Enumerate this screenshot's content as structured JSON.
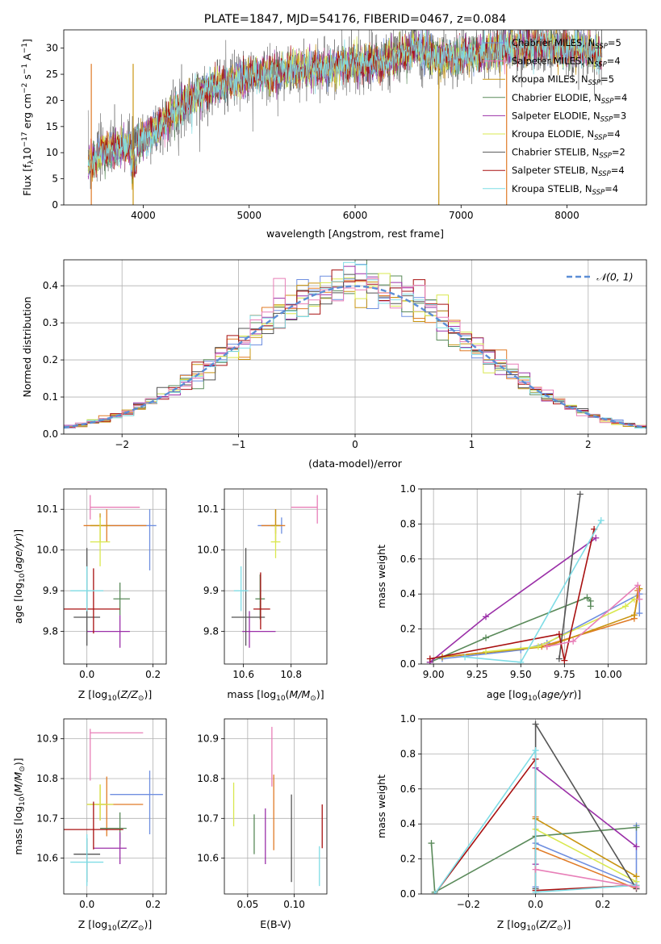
{
  "colors": [
    "#6f8fe0",
    "#e07b27",
    "#c99512",
    "#5a8a5a",
    "#9b30a8",
    "#d9e84f",
    "#555555",
    "#a81010",
    "#7fdde6",
    "#e87fb8"
  ],
  "chart_data": [
    {
      "id": "spectrum",
      "type": "line",
      "title": "PLATE=1847, MJD=54176, FIBERID=0467, z=0.084",
      "xlabel": "wavelength [Angstrom, rest frame]",
      "ylabel": "Flux [f_λ10^-17 erg cm^-2 s^-1 A^-1]",
      "xlim": [
        3250,
        8750
      ],
      "ylim": [
        0,
        33.5
      ],
      "xticks": [
        4000,
        5000,
        6000,
        7000,
        8000
      ],
      "yticks": [
        0,
        5,
        10,
        15,
        20,
        25,
        30
      ],
      "grid": false,
      "legend_position": "top-right",
      "spectrum_anchor_points": {
        "x": [
          3480,
          3600,
          3800,
          3950,
          4100,
          4300,
          4500,
          4800,
          5000,
          5200,
          5500,
          5800,
          6000,
          6300,
          6563,
          6800,
          7000,
          7200,
          7500,
          7800,
          8000,
          8300
        ],
        "y": [
          8,
          10,
          11,
          12,
          14,
          18,
          21,
          23.5,
          24.5,
          25,
          26,
          26.5,
          27,
          27.5,
          30,
          28,
          28.5,
          29,
          30,
          30.5,
          30,
          29
        ]
      },
      "legend": [
        {
          "name": "Chabrier MILES, N$_{SSP}$=5",
          "base": "Chabrier MILES, N",
          "sub": "SSP",
          "tail": "=5",
          "color": "#6f8fe0"
        },
        {
          "name": "Salpeter MILES, N$_{SSP}$=4",
          "base": "Salpeter MILES, N",
          "sub": "SSP",
          "tail": "=4",
          "color": "#e87fb8"
        },
        {
          "name": "Kroupa MILES, N$_{SSP}$=5",
          "base": "Kroupa MILES, N",
          "sub": "SSP",
          "tail": "=5",
          "color": "#c99512"
        },
        {
          "name": "Chabrier ELODIE, N$_{SSP}$=4",
          "base": "Chabrier ELODIE, N",
          "sub": "SSP",
          "tail": "=4",
          "color": "#5a8a5a"
        },
        {
          "name": "Salpeter ELODIE, N$_{SSP}$=3",
          "base": "Salpeter ELODIE, N",
          "sub": "SSP",
          "tail": "=3",
          "color": "#9b30a8"
        },
        {
          "name": "Kroupa ELODIE, N$_{SSP}$=4",
          "base": "Kroupa ELODIE, N",
          "sub": "SSP",
          "tail": "=4",
          "color": "#d9e84f"
        },
        {
          "name": "Chabrier STELIB, N$_{SSP}$=2",
          "base": "Chabrier STELIB, N",
          "sub": "SSP",
          "tail": "=2",
          "color": "#555555"
        },
        {
          "name": "Salpeter STELIB, N$_{SSP}$=4",
          "base": "Salpeter STELIB, N",
          "sub": "SSP",
          "tail": "=4",
          "color": "#a81010"
        },
        {
          "name": "Kroupa STELIB, N$_{SSP}$=4",
          "base": "Kroupa STELIB, N",
          "sub": "SSP",
          "tail": "=4",
          "color": "#7fdde6"
        }
      ]
    },
    {
      "id": "residuals",
      "type": "line",
      "xlabel": "(data-model)/error",
      "ylabel": "Normed distribution",
      "xlim": [
        -2.5,
        2.5
      ],
      "ylim": [
        0,
        0.47
      ],
      "xticks": [
        -2,
        -1,
        0,
        1,
        2
      ],
      "yticks": [
        0.0,
        0.1,
        0.2,
        0.3,
        0.4
      ],
      "grid": true,
      "legend_position": "top-right",
      "legend": [
        {
          "name": "N(0,1)",
          "label": "𝒩(0, 1)",
          "color": "#5b8ed6",
          "style": "dashed"
        }
      ],
      "histogram": {
        "bin_start": -2.5,
        "bin_width": 0.1,
        "n_bins": 50,
        "model": "normal(0,1) with scatter per series",
        "n_series": 10
      }
    },
    {
      "id": "age-vs-z",
      "type": "scatter",
      "xlabel": "Z [log10(Z/Z⊙)]",
      "ylabel": "age [log10(age/yr)]",
      "xlim": [
        -0.07,
        0.24
      ],
      "ylim": [
        9.72,
        10.15
      ],
      "xticks": [
        0.0,
        0.2
      ],
      "yticks": [
        9.8,
        9.9,
        10.0,
        10.1
      ],
      "grid": true,
      "points": [
        {
          "x": 0.19,
          "y": 10.06,
          "xerr": [
            0.12,
            0.02
          ],
          "yerr": [
            0.11,
            0.04
          ],
          "color": "#6f8fe0"
        },
        {
          "x": 0.06,
          "y": 10.06,
          "xerr": [
            0.07,
            0.12
          ],
          "yerr": [
            0.04,
            0.04
          ],
          "color": "#e07b27"
        },
        {
          "x": 0.04,
          "y": 10.06,
          "xerr": [
            0.03,
            0.03
          ],
          "yerr": [
            0.04,
            0.03
          ],
          "color": "#c99512"
        },
        {
          "x": 0.1,
          "y": 9.88,
          "xerr": [
            0.02,
            0.03
          ],
          "yerr": [
            0.04,
            0.04
          ],
          "color": "#5a8a5a"
        },
        {
          "x": 0.1,
          "y": 9.8,
          "xerr": [
            0.1,
            0.03
          ],
          "yerr": [
            0.04,
            0.04
          ],
          "color": "#9b30a8"
        },
        {
          "x": 0.04,
          "y": 10.02,
          "xerr": [
            0.03,
            0.03
          ],
          "yerr": [
            0.06,
            0.06
          ],
          "color": "#d9e84f"
        },
        {
          "x": 0.0,
          "y": 9.835,
          "xerr": [
            0.04,
            0.04
          ],
          "yerr": [
            0.07,
            0.17
          ],
          "color": "#555555"
        },
        {
          "x": 0.02,
          "y": 9.855,
          "xerr": [
            0.1,
            0.08
          ],
          "yerr": [
            0.06,
            0.1
          ],
          "color": "#a81010"
        },
        {
          "x": 0.0,
          "y": 9.9,
          "xerr": [
            0.05,
            0.05
          ],
          "yerr": [
            0.05,
            0.06
          ],
          "color": "#7fdde6"
        },
        {
          "x": 0.01,
          "y": 10.105,
          "xerr": [
            0.0,
            0.15
          ],
          "yerr": [
            0.03,
            0.03
          ],
          "color": "#e87fb8"
        }
      ]
    },
    {
      "id": "age-vs-mass",
      "type": "scatter",
      "xlabel": "mass [log10(M/M⊙)]",
      "ylabel": "",
      "xlim": [
        10.52,
        10.95
      ],
      "ylim": [
        9.72,
        10.15
      ],
      "xticks": [
        10.6,
        10.8
      ],
      "yticks": [
        9.8,
        9.9,
        10.0,
        10.1
      ],
      "grid": true,
      "points": [
        {
          "x": 10.76,
          "y": 10.06,
          "xerr": [
            0.1,
            0.0
          ],
          "yerr": [
            0.02,
            0.02
          ],
          "color": "#6f8fe0"
        },
        {
          "x": 10.735,
          "y": 10.06,
          "xerr": [
            0.06,
            0.04
          ],
          "yerr": [
            0.02,
            0.04
          ],
          "color": "#e07b27"
        },
        {
          "x": 10.735,
          "y": 10.06,
          "xerr": [
            0.02,
            0.02
          ],
          "yerr": [
            0.04,
            0.04
          ],
          "color": "#c99512"
        },
        {
          "x": 10.67,
          "y": 9.88,
          "xerr": [
            0.02,
            0.02
          ],
          "yerr": [
            0.05,
            0.06
          ],
          "color": "#5a8a5a"
        },
        {
          "x": 10.625,
          "y": 9.8,
          "xerr": [
            0.03,
            0.11
          ],
          "yerr": [
            0.04,
            0.05
          ],
          "color": "#9b30a8"
        },
        {
          "x": 10.735,
          "y": 10.02,
          "xerr": [
            0.02,
            0.02
          ],
          "yerr": [
            0.04,
            0.04
          ],
          "color": "#d9e84f"
        },
        {
          "x": 10.61,
          "y": 9.835,
          "xerr": [
            0.06,
            0.08
          ],
          "yerr": [
            0.07,
            0.17
          ],
          "color": "#555555"
        },
        {
          "x": 10.672,
          "y": 9.855,
          "xerr": [
            0.03,
            0.04
          ],
          "yerr": [
            0.05,
            0.09
          ],
          "color": "#a81010"
        },
        {
          "x": 10.59,
          "y": 9.9,
          "xerr": [
            0.03,
            0.03
          ],
          "yerr": [
            0.05,
            0.06
          ],
          "color": "#7fdde6"
        },
        {
          "x": 10.91,
          "y": 10.105,
          "xerr": [
            0.11,
            0.0
          ],
          "yerr": [
            0.04,
            0.03
          ],
          "color": "#e87fb8"
        }
      ]
    },
    {
      "id": "weight-vs-age",
      "type": "line",
      "xlabel": "age [log10(age/yr)]",
      "ylabel": "mass weight",
      "xlim": [
        8.93,
        10.22
      ],
      "ylim": [
        0,
        1.0
      ],
      "xticks": [
        9.0,
        9.25,
        9.5,
        9.75,
        10.0
      ],
      "yticks": [
        0.0,
        0.2,
        0.4,
        0.6,
        0.8,
        1.0
      ],
      "grid": true,
      "series": [
        {
          "color": "#6f8fe0",
          "x": [
            9.05,
            9.5,
            9.65,
            10.18,
            10.18
          ],
          "y": [
            0.03,
            0.08,
            0.12,
            0.4,
            0.29
          ]
        },
        {
          "color": "#e07b27",
          "x": [
            9.05,
            9.62,
            10.15,
            10.17
          ],
          "y": [
            0.04,
            0.1,
            0.26,
            0.42
          ]
        },
        {
          "color": "#c99512",
          "x": [
            9.05,
            9.65,
            10.15,
            10.18
          ],
          "y": [
            0.04,
            0.1,
            0.28,
            0.43
          ]
        },
        {
          "color": "#5a8a5a",
          "x": [
            8.98,
            9.3,
            9.88,
            9.9,
            9.9
          ],
          "y": [
            0.01,
            0.15,
            0.38,
            0.36,
            0.33
          ]
        },
        {
          "color": "#9b30a8",
          "x": [
            8.98,
            9.3,
            9.93
          ],
          "y": [
            0.01,
            0.27,
            0.72
          ]
        },
        {
          "color": "#d9e84f",
          "x": [
            9.3,
            9.6,
            10.1,
            10.15
          ],
          "y": [
            0.07,
            0.1,
            0.33,
            0.37
          ]
        },
        {
          "color": "#555555",
          "x": [
            9.72,
            9.84
          ],
          "y": [
            0.03,
            0.97
          ]
        },
        {
          "color": "#a81010",
          "x": [
            8.98,
            9.72,
            9.75,
            9.92
          ],
          "y": [
            0.03,
            0.17,
            0.02,
            0.77
          ]
        },
        {
          "color": "#7fdde6",
          "x": [
            9.18,
            9.5,
            9.96
          ],
          "y": [
            0.04,
            0.01,
            0.82
          ]
        },
        {
          "color": "#e87fb8",
          "x": [
            9.65,
            9.8,
            10.17,
            10.18
          ],
          "y": [
            0.1,
            0.13,
            0.45,
            0.37
          ]
        }
      ]
    },
    {
      "id": "mass-vs-z",
      "type": "scatter",
      "xlabel": "Z [log10(Z/Z⊙)]",
      "ylabel": "mass [log10(M/M⊙)]",
      "xlim": [
        -0.07,
        0.24
      ],
      "ylim": [
        10.51,
        10.95
      ],
      "xticks": [
        0.0,
        0.2
      ],
      "yticks": [
        10.6,
        10.7,
        10.8,
        10.9
      ],
      "grid": true,
      "points": [
        {
          "x": 0.19,
          "y": 10.76,
          "xerr": [
            0.12,
            0.04
          ],
          "yerr": [
            0.1,
            0.06
          ],
          "color": "#6f8fe0"
        },
        {
          "x": 0.06,
          "y": 10.735,
          "xerr": [
            0.05,
            0.11
          ],
          "yerr": [
            0.08,
            0.07
          ],
          "color": "#e07b27"
        },
        {
          "x": 0.04,
          "y": 10.735,
          "xerr": [
            0.04,
            0.02
          ],
          "yerr": [
            0.04,
            0.05
          ],
          "color": "#c99512"
        },
        {
          "x": 0.1,
          "y": 10.675,
          "xerr": [
            0.06,
            0.02
          ],
          "yerr": [
            0.04,
            0.04
          ],
          "color": "#5a8a5a"
        },
        {
          "x": 0.1,
          "y": 10.625,
          "xerr": [
            0.08,
            0.02
          ],
          "yerr": [
            0.04,
            0.04
          ],
          "color": "#9b30a8"
        },
        {
          "x": 0.04,
          "y": 10.735,
          "xerr": [
            0.04,
            0.04
          ],
          "yerr": [
            0.04,
            0.05
          ],
          "color": "#d9e84f"
        },
        {
          "x": 0.0,
          "y": 10.61,
          "xerr": [
            0.04,
            0.04
          ],
          "yerr": [
            0.07,
            0.04
          ],
          "color": "#555555"
        },
        {
          "x": 0.02,
          "y": 10.672,
          "xerr": [
            0.09,
            0.09
          ],
          "yerr": [
            0.05,
            0.07
          ],
          "color": "#a81010"
        },
        {
          "x": 0.0,
          "y": 10.59,
          "xerr": [
            0.05,
            0.05
          ],
          "yerr": [
            0.06,
            0.07
          ],
          "color": "#7fdde6"
        },
        {
          "x": 0.01,
          "y": 10.915,
          "xerr": [
            0.0,
            0.16
          ],
          "yerr": [
            0.12,
            0.01
          ],
          "color": "#e87fb8"
        }
      ]
    },
    {
      "id": "ebv",
      "type": "scatter",
      "xlabel": "E(B-V)",
      "ylabel": "",
      "xlim": [
        0.025,
        0.135
      ],
      "ylim": [
        10.51,
        10.95
      ],
      "xticks": [
        0.05,
        0.1
      ],
      "yticks": [
        10.6,
        10.7,
        10.8,
        10.9
      ],
      "grid": true,
      "points": [
        {
          "x": 0.035,
          "y": 10.73,
          "yerr": [
            0.05,
            0.06
          ],
          "color": "#d9e84f"
        },
        {
          "x": 0.057,
          "y": 10.66,
          "yerr": [
            0.05,
            0.05
          ],
          "color": "#5a8a5a"
        },
        {
          "x": 0.069,
          "y": 10.655,
          "yerr": [
            0.07,
            0.07
          ],
          "color": "#9b30a8"
        },
        {
          "x": 0.076,
          "y": 10.85,
          "yerr": [
            0.07,
            0.08
          ],
          "color": "#e87fb8"
        },
        {
          "x": 0.078,
          "y": 10.72,
          "yerr": [
            0.1,
            0.09
          ],
          "color": "#e07b27"
        },
        {
          "x": 0.097,
          "y": 10.64,
          "yerr": [
            0.1,
            0.12
          ],
          "color": "#555555"
        },
        {
          "x": 0.127,
          "y": 10.59,
          "yerr": [
            0.06,
            0.04
          ],
          "color": "#7fdde6"
        },
        {
          "x": 0.13,
          "y": 10.675,
          "yerr": [
            0.05,
            0.06
          ],
          "color": "#a81010"
        }
      ]
    },
    {
      "id": "weight-vs-z",
      "type": "line",
      "xlabel": "Z [log10(Z/Z⊙)]",
      "ylabel": "mass weight",
      "xlim": [
        -0.34,
        0.33
      ],
      "ylim": [
        0,
        1.0
      ],
      "xticks": [
        -0.2,
        0.0,
        0.2
      ],
      "yticks": [
        0.0,
        0.2,
        0.4,
        0.6,
        0.8,
        1.0
      ],
      "grid": true,
      "series": [
        {
          "color": "#6f8fe0",
          "x": [
            0.0,
            0.0,
            0.3,
            0.3
          ],
          "y": [
            0.04,
            0.29,
            0.05,
            0.39
          ]
        },
        {
          "color": "#e07b27",
          "x": [
            0.0,
            0.0,
            0.3
          ],
          "y": [
            0.44,
            0.26,
            0.03
          ]
        },
        {
          "color": "#c99512",
          "x": [
            0.0,
            0.3
          ],
          "y": [
            0.43,
            0.1
          ]
        },
        {
          "color": "#5a8a5a",
          "x": [
            -0.31,
            -0.3,
            0.0,
            0.3
          ],
          "y": [
            0.29,
            0.01,
            0.33,
            0.38
          ]
        },
        {
          "color": "#9b30a8",
          "x": [
            0.0,
            0.0,
            0.3
          ],
          "y": [
            0.17,
            0.72,
            0.27
          ]
        },
        {
          "color": "#d9e84f",
          "x": [
            0.0,
            0.3
          ],
          "y": [
            0.37,
            0.07
          ]
        },
        {
          "color": "#555555",
          "x": [
            0.0,
            0.0,
            0.3
          ],
          "y": [
            0.03,
            0.97,
            0.03
          ]
        },
        {
          "color": "#a81010",
          "x": [
            -0.3,
            0.0,
            0.0,
            0.3
          ],
          "y": [
            0.0,
            0.77,
            0.02,
            0.05
          ]
        },
        {
          "color": "#7fdde6",
          "x": [
            -0.3,
            0.0,
            0.0,
            0.3
          ],
          "y": [
            0.0,
            0.82,
            0.01,
            0.05
          ]
        },
        {
          "color": "#e87fb8",
          "x": [
            0.0,
            0.3
          ],
          "y": [
            0.14,
            0.04
          ]
        }
      ]
    }
  ]
}
